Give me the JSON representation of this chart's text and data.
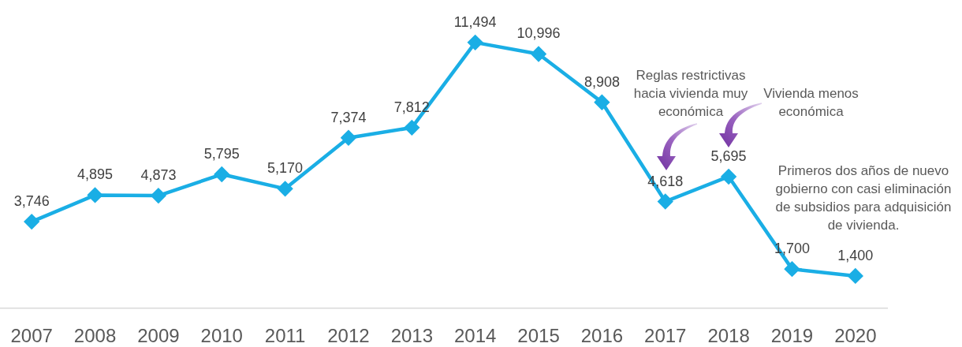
{
  "chart_data": {
    "type": "line",
    "categories": [
      "2007",
      "2008",
      "2009",
      "2010",
      "2011",
      "2012",
      "2013",
      "2014",
      "2015",
      "2016",
      "2017",
      "2018",
      "2019",
      "2020"
    ],
    "values": [
      3746,
      4895,
      4873,
      5795,
      5170,
      7374,
      7812,
      11494,
      10996,
      8908,
      4618,
      5695,
      1700,
      1400
    ],
    "value_labels": [
      "3,746",
      "4,895",
      "4,873",
      "5,795",
      "5,170",
      "7,374",
      "7,812",
      "11,494",
      "10,996",
      "8,908",
      "4,618",
      "5,695",
      "1,700",
      "1,400"
    ],
    "color": "#1aaee5",
    "marker": "diamond",
    "tick_labels": "x",
    "annotations": [
      "Reglas restrictivas hacia vivienda muy económica",
      "Vivienda menos económica",
      "Primeros dos años de nuevo gobierno con casi eliminación de subsidios para adquisición de vivienda."
    ]
  }
}
